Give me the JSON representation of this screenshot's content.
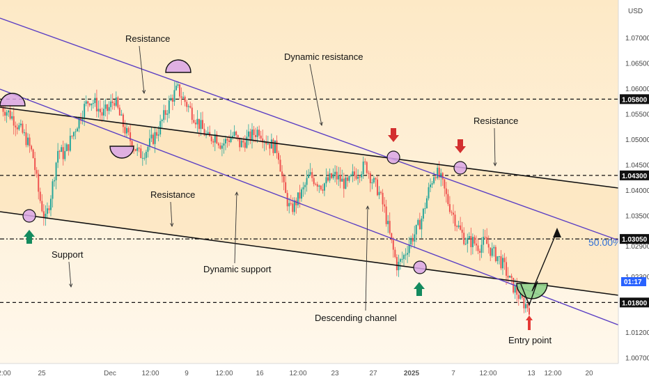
{
  "chart_data": {
    "type": "candlestick",
    "instrument_currency": "USD",
    "grid": false,
    "x_axis": {
      "ticks": [
        "2:00",
        "25",
        "Dec",
        "12:00",
        "9",
        "12:00",
        "16",
        "12:00",
        "23",
        "27",
        "2025",
        "7",
        "12:00",
        "13",
        "12:00",
        "20"
      ],
      "x_range": [
        "Nov 22 2024",
        "Jan 22 2025"
      ]
    },
    "y_axis": {
      "ylim": [
        1.006,
        1.0775
      ],
      "ticks": [
        "1.00700",
        "1.01200",
        "1.02300",
        "1.02900",
        "1.03500",
        "1.04000",
        "1.04500",
        "1.05000",
        "1.05500",
        "1.06000",
        "1.06500",
        "1.07000"
      ]
    },
    "horizontal_levels": [
      {
        "value": "1.05800",
        "style": "dashed"
      },
      {
        "value": "1.04300",
        "style": "dashed"
      },
      {
        "value": "1.03050",
        "style": "dash-dot"
      },
      {
        "value": "1.01800",
        "style": "dashed"
      }
    ],
    "current_price_tag": "01:17",
    "fib_label": "50.00%",
    "annotations": [
      "Resistance",
      "Dynamic resistance",
      "Resistance",
      "Resistance",
      "Support",
      "Dynamic support",
      "Descending channel",
      "Entry point"
    ],
    "price_path": [
      1.0565,
      1.0555,
      1.054,
      1.052,
      1.05,
      1.047,
      1.039,
      1.034,
      1.04,
      1.048,
      1.047,
      1.05,
      1.053,
      1.056,
      1.058,
      1.057,
      1.055,
      1.056,
      1.058,
      1.054,
      1.051,
      1.049,
      1.047,
      1.048,
      1.05,
      1.052,
      1.055,
      1.058,
      1.06,
      1.058,
      1.056,
      1.054,
      1.052,
      1.05,
      1.051,
      1.049,
      1.05,
      1.051,
      1.049,
      1.05,
      1.051,
      1.052,
      1.05,
      1.049,
      1.048,
      1.04,
      1.036,
      1.038,
      1.04,
      1.043,
      1.042,
      1.041,
      1.042,
      1.043,
      1.042,
      1.041,
      1.043,
      1.044,
      1.045,
      1.042,
      1.04,
      1.036,
      1.03,
      1.025,
      1.027,
      1.03,
      1.032,
      1.035,
      1.04,
      1.044,
      1.042,
      1.038,
      1.035,
      1.032,
      1.03,
      1.03,
      1.029,
      1.03,
      1.028,
      1.027,
      1.025,
      1.022,
      1.02,
      1.018,
      1.017
    ]
  }
}
